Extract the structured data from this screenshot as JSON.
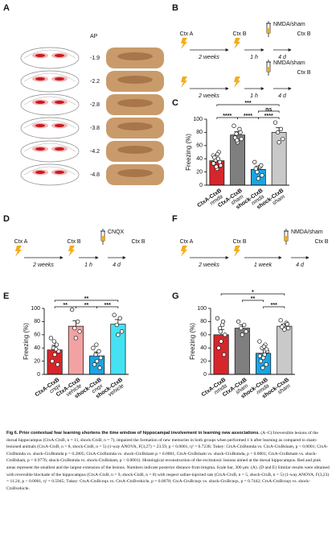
{
  "panel_labels": [
    "A",
    "B",
    "C",
    "D",
    "E",
    "F",
    "G"
  ],
  "panel_a": {
    "header": "AP",
    "levels": [
      "-1.9",
      "-2.2",
      "-2.8",
      "-3.8",
      "-4.2",
      "-4.8"
    ]
  },
  "timelines": {
    "B": [
      {
        "start": "Ctx A",
        "interval1": "2 weeks",
        "test1": "Ctx B",
        "interval2": "1 h",
        "drug": "NMDA/sham",
        "interval3": "4 d",
        "test2": "Ctx B"
      },
      {
        "interval1": "2 weeks",
        "interval2": "1 h",
        "drug": "NMDA/sham",
        "interval3": "4 d",
        "test2": "Ctx B"
      }
    ],
    "D": [
      {
        "start": "Ctx A",
        "interval1": "2 weeks",
        "test1": "Ctx B",
        "interval2": "1 h",
        "drug": "CNQX",
        "interval3": "4 d",
        "test2": "Ctx B"
      }
    ],
    "F": [
      {
        "start": "Ctx A",
        "interval1": "2 weeks",
        "test1": "Ctx B",
        "interval2": "1 week",
        "drug": "NMDA/sham",
        "interval3": "4 d",
        "test2": "Ctx B"
      }
    ]
  },
  "chart_data": [
    {
      "type": "bar",
      "ylabel": "Freezing (%)",
      "categories": [
        "CtxA-CtxB",
        "CtxA-CtxB",
        "shock-CtxB",
        "shock-CtxB"
      ],
      "category_sublabels": [
        "nmda",
        "sham",
        "nmda",
        "sham"
      ],
      "values": [
        37,
        76,
        24,
        80
      ],
      "errors": [
        4,
        5,
        5,
        7
      ],
      "colors": [
        "#d7262b",
        "#7f7f7f",
        "#1ca4e2",
        "#c9c9c9"
      ],
      "points": [
        [
          45,
          50,
          38,
          30,
          25,
          42,
          35,
          28,
          40,
          33,
          47
        ],
        [
          90,
          85,
          78,
          70,
          65,
          72,
          80,
          68
        ],
        [
          35,
          28,
          20,
          15,
          10,
          25,
          30
        ],
        [
          95,
          85,
          80,
          70,
          65
        ]
      ],
      "ylim": [
        0,
        100
      ],
      "yticks": [
        0,
        20,
        40,
        60,
        80,
        100
      ],
      "annotations": [
        "***",
        "****",
        "****",
        "ns",
        "****"
      ]
    },
    {
      "type": "bar",
      "ylabel": "Freezing (%)",
      "categories": [
        "CtxA-CtxB",
        "CtxA-CtxB",
        "shock-CtxB",
        "shock-CtxB"
      ],
      "category_sublabels": [
        "cnqx",
        "vehicle",
        "cnqx",
        "vehicle"
      ],
      "values": [
        37,
        73,
        28,
        76
      ],
      "errors": [
        7,
        8,
        6,
        7
      ],
      "colors": [
        "#d7262b",
        "#f2a2a2",
        "#1ca4e2",
        "#44e2f2"
      ],
      "points": [
        [
          55,
          45,
          40,
          35,
          30,
          20,
          15,
          50,
          38
        ],
        [
          98,
          80,
          70,
          65,
          55
        ],
        [
          40,
          35,
          30,
          25,
          20,
          15,
          10,
          45
        ],
        [
          90,
          85,
          75,
          65,
          60
        ]
      ],
      "ylim": [
        0,
        100
      ],
      "yticks": [
        0,
        20,
        40,
        60,
        80,
        100
      ],
      "annotations": [
        "**",
        "**",
        "**",
        "***"
      ]
    },
    {
      "type": "bar",
      "ylabel": "Freezing (%)",
      "categories": [
        "CtxA-CtxB",
        "CtxA-CtxB",
        "shock-CtxB",
        "shock-CtxB"
      ],
      "category_sublabels": [
        "nmda",
        "sham",
        "nmda",
        "sham"
      ],
      "values": [
        60,
        70,
        32,
        73
      ],
      "errors": [
        8,
        5,
        7,
        3
      ],
      "colors": [
        "#d7262b",
        "#7f7f7f",
        "#1ca4e2",
        "#c9c9c9"
      ],
      "points": [
        [
          85,
          80,
          70,
          60,
          50,
          40,
          30,
          65,
          75
        ],
        [
          80,
          75,
          70,
          65,
          60
        ],
        [
          50,
          45,
          40,
          35,
          25,
          20,
          15,
          10,
          30,
          28,
          42,
          38
        ],
        [
          82,
          78,
          74,
          70,
          68,
          72,
          76
        ]
      ],
      "ylim": [
        0,
        100
      ],
      "yticks": [
        0,
        20,
        40,
        60,
        80,
        100
      ],
      "annotations": [
        "*",
        "**",
        "***"
      ]
    }
  ],
  "caption": {
    "label": "Fig 6.",
    "title": "Prior contextual fear learning shortens the time window of hippocampal involvement in learning new associations.",
    "body": "(A–C) Irreversible lesions of the dorsal hippocampus (CtxA-CtxB, n = 11, shock-CtxB, n = 7), impaired the formation of new memories in both groups when performed 1 h after learning as compared to sham-lesioned animals (CtxA-CtxB, n = 8, shock-CtxB, n = 5) (1-way ANOVA, F(3,27) = 23.59, p < 0.0001, η² = 0.7238; Tukey: CtxA-CtxBnmda vs. CtxA-CtxBsham, p < 0.0001; CtxA-CtxBnmda vs. shock-CtxBnmda p = 0.2805; CtxA-CtxBnmda vs. shock-CtxBsham p = 0.0001; CtxA-CtxBsham vs. shock-CtxBnmda, p < 0.0001; CtxA-CtxBsham vs. shock-CtxBsham, p = 0.9776; shock-CtxBnmda vs. shock-CtxBsham, p < 0.0001). Histological reconstruction of the excitotoxic lesions aimed at the dorsal hippocampus. Red and pink areas represent the smallest and the largest extension of the lesions. Numbers indicate posterior distance from bregma. Scale bar, 300 μm. (A). (D and E) Similar results were obtained with reversible blockade of the hippocampus (CtxA-CtxB, n = 9, shock-CtxB, n = 8) with respect saline-injected rats (CtxA-CtxB, n = 5, shock-CtxB, n = 5) (1-way ANOVA, F(3,23) = 11.24, p < 0.0001, η² = 0.5945; Tukey: CtxA-CtxBcnqx vs. CtxA-CtxBvehicle, p = 0.0078; CtxA-CtxBcnqx vs. shock-CtxBcnqx, p = 0.7442; CtxA-CtxBcnqx vs. shock-CtxBvehicle."
  }
}
